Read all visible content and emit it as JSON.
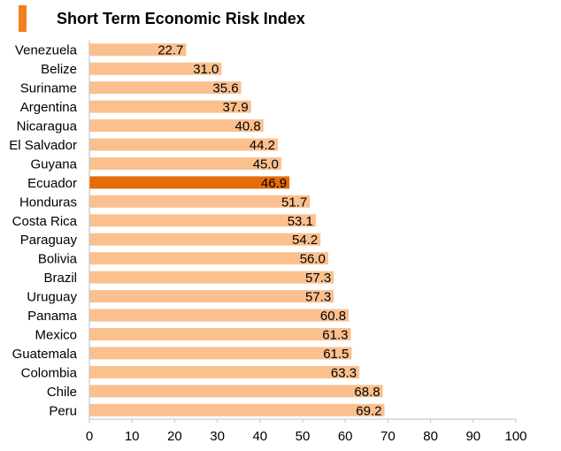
{
  "title": "Short Term Economic Risk Index",
  "colors": {
    "bar": "#fbc08e",
    "highlight": "#e46c0a",
    "accent": "#f07f1d",
    "axis": "#bfbfbf"
  },
  "chart_data": {
    "type": "bar",
    "orientation": "horizontal",
    "title": "Short Term Economic Risk Index",
    "categories": [
      "Venezuela",
      "Belize",
      "Suriname",
      "Argentina",
      "Nicaragua",
      "El Salvador",
      "Guyana",
      "Ecuador",
      "Honduras",
      "Costa Rica",
      "Paraguay",
      "Bolivia",
      "Brazil",
      "Uruguay",
      "Panama",
      "Mexico",
      "Guatemala",
      "Colombia",
      "Chile",
      "Peru"
    ],
    "values": [
      22.7,
      31.0,
      35.6,
      37.9,
      40.8,
      44.2,
      45.0,
      46.9,
      51.7,
      53.1,
      54.2,
      56.0,
      57.3,
      57.3,
      60.8,
      61.3,
      61.5,
      63.3,
      68.8,
      69.2
    ],
    "value_labels": [
      "22.7",
      "31.0",
      "35.6",
      "37.9",
      "40.8",
      "44.2",
      "45.0",
      "46.9",
      "51.7",
      "53.1",
      "54.2",
      "56.0",
      "57.3",
      "57.3",
      "60.8",
      "61.3",
      "61.5",
      "63.3",
      "68.8",
      "69.2"
    ],
    "highlight": "Ecuador",
    "xlim": [
      0,
      100
    ],
    "xticks": [
      "0",
      "10",
      "20",
      "30",
      "40",
      "50",
      "60",
      "70",
      "80",
      "90",
      "100"
    ],
    "grid": false,
    "legend": "none"
  }
}
